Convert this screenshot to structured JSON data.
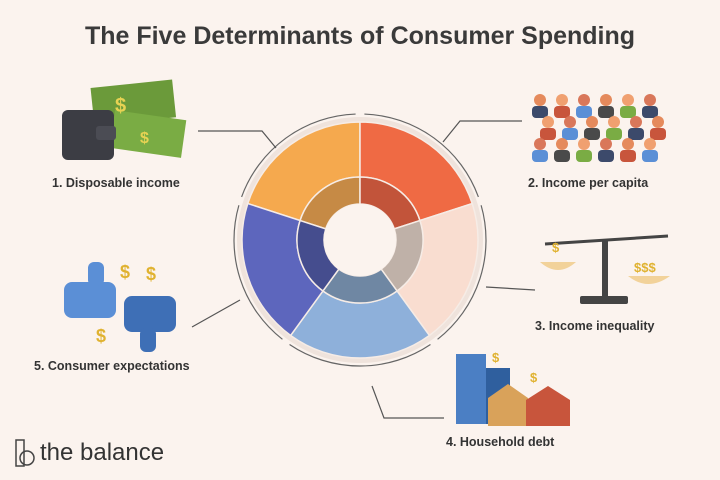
{
  "title": "The Five Determinants of Consumer Spending",
  "determinants": [
    {
      "label": "1. Disposable income",
      "color": "#f5a94e",
      "inner_color": "#c68a45",
      "icon": "wallet-money-icon"
    },
    {
      "label": "2. Income per capita",
      "color": "#ef6a44",
      "inner_color": "#c2543a",
      "icon": "crowd-icon"
    },
    {
      "label": "3. Income inequality",
      "color": "#f9ddd0",
      "inner_color": "#bfb1a8",
      "icon": "balance-scale-icon"
    },
    {
      "label": "4. Household debt",
      "color": "#8eb0da",
      "inner_color": "#6f87a3",
      "icon": "houses-icon"
    },
    {
      "label": "5. Consumer expectations",
      "color": "#5d66bd",
      "inner_color": "#454d8e",
      "icon": "thumbs-icon"
    }
  ],
  "logo": {
    "text": "the balance"
  }
}
